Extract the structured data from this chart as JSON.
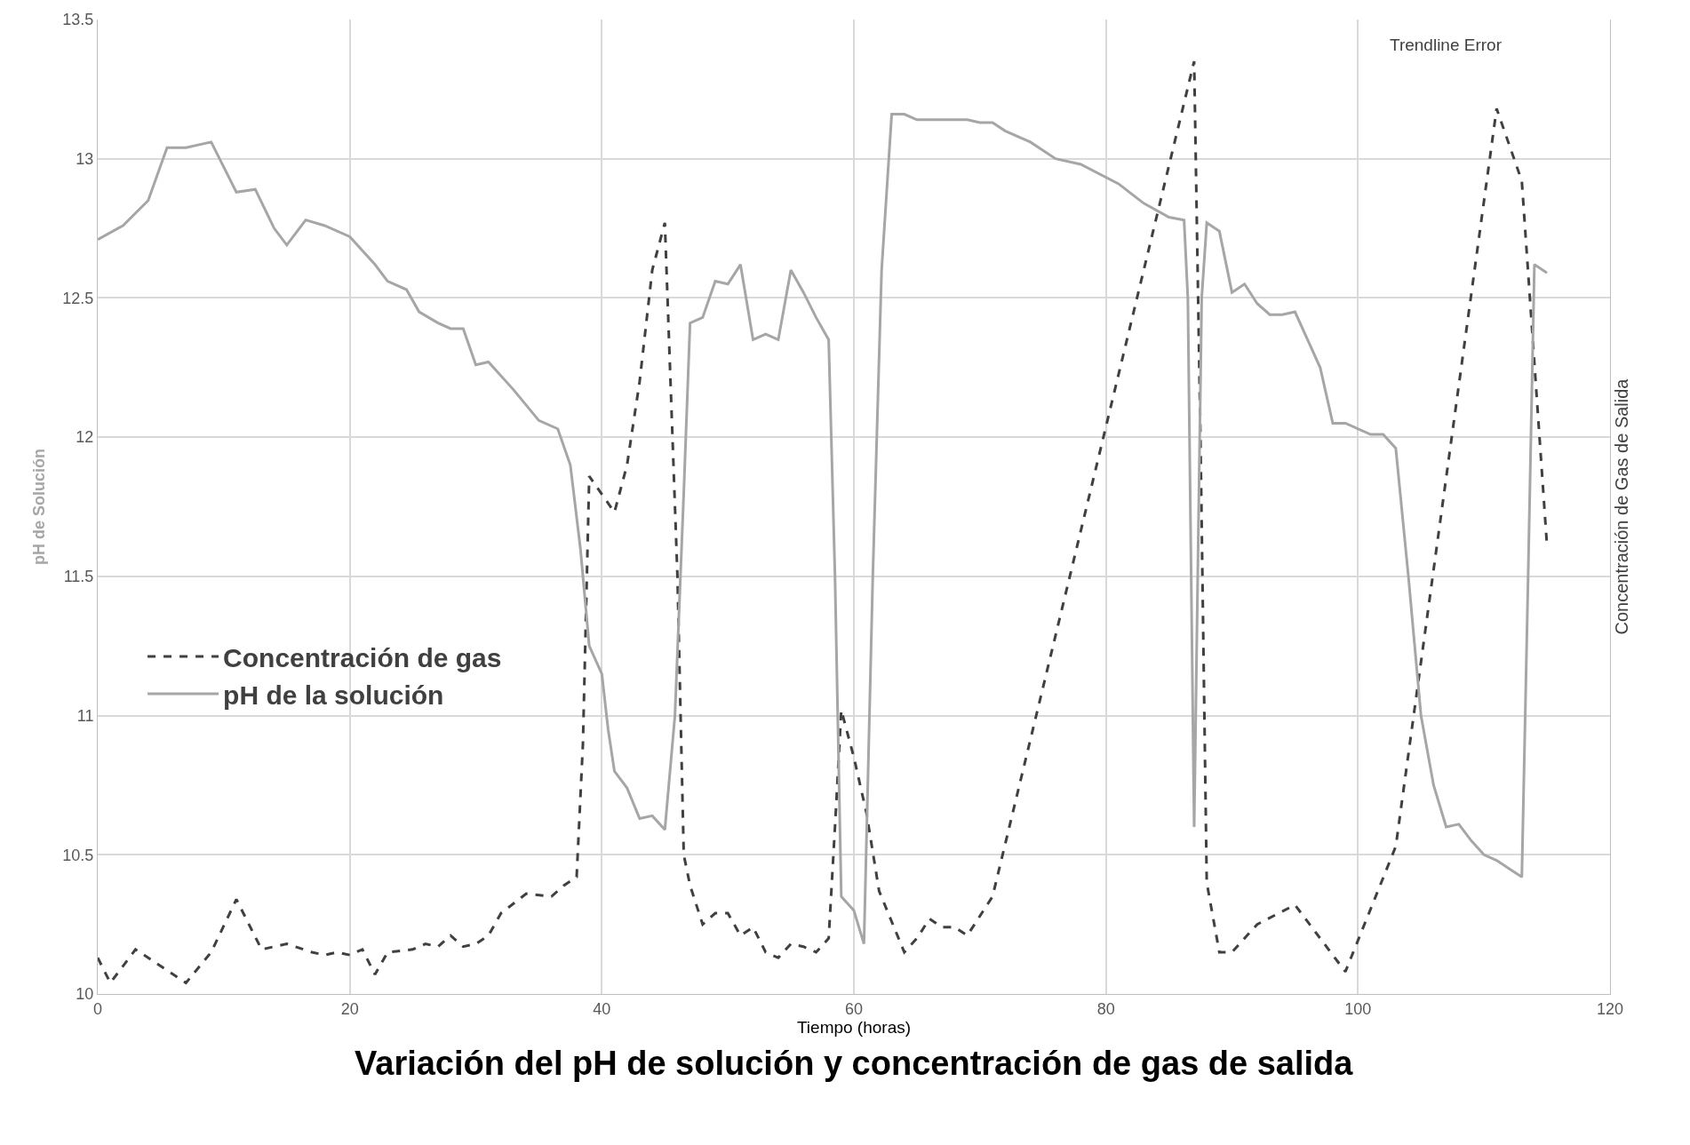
{
  "chart_data": {
    "type": "line",
    "title": "Variación del pH de solución y concentración de gas de salida",
    "xlabel": "Tiempo (horas)",
    "ylabel": "pH de Solución",
    "y2label": "Concentración de Gas de Salida",
    "annotations": [
      "Trendline Error"
    ],
    "xlim": [
      0,
      120
    ],
    "xticks": [
      0,
      20,
      40,
      60,
      80,
      100,
      120
    ],
    "ylim": [
      10,
      13.5
    ],
    "yticks": [
      10,
      10.5,
      11,
      11.5,
      12,
      12.5,
      13,
      13.5
    ],
    "grid": true,
    "legend": "left",
    "marker": "none",
    "series": [
      {
        "name": "Concentración de gas",
        "color": "#404040",
        "line_style": "dashed",
        "x": [
          0,
          1,
          3,
          7,
          9,
          11,
          13,
          15,
          17,
          18,
          19,
          20,
          21,
          22,
          23,
          25,
          26,
          27,
          28,
          29,
          30,
          31,
          32,
          34,
          36,
          37,
          38,
          38.5,
          39,
          41,
          42,
          43,
          44,
          45,
          46,
          46.5,
          47,
          48,
          49,
          50,
          51,
          52,
          53,
          54,
          55,
          56,
          57,
          58,
          58.5,
          59,
          60,
          61,
          62,
          64,
          65,
          66,
          67,
          68,
          69,
          71,
          87,
          87.5,
          88,
          89,
          90,
          92,
          95,
          99,
          103,
          111,
          113,
          115
        ],
        "values": [
          10.13,
          10.04,
          10.16,
          10.04,
          10.15,
          10.34,
          10.16,
          10.18,
          10.15,
          10.14,
          10.15,
          10.14,
          10.16,
          10.07,
          10.15,
          10.16,
          10.18,
          10.17,
          10.21,
          10.17,
          10.18,
          10.21,
          10.29,
          10.36,
          10.35,
          10.39,
          10.42,
          10.9,
          11.86,
          11.73,
          11.9,
          12.2,
          12.6,
          12.77,
          11.5,
          10.5,
          10.39,
          10.25,
          10.29,
          10.29,
          10.21,
          10.24,
          10.15,
          10.13,
          10.18,
          10.17,
          10.15,
          10.2,
          10.6,
          11.02,
          10.85,
          10.65,
          10.37,
          10.15,
          10.2,
          10.27,
          10.24,
          10.24,
          10.21,
          10.35,
          13.35,
          12.0,
          10.4,
          10.15,
          10.15,
          10.25,
          10.32,
          10.08,
          10.53,
          13.18,
          12.92,
          11.61
        ]
      },
      {
        "name": "pH de la solución",
        "color": "#a6a6a6",
        "line_style": "solid",
        "x": [
          0,
          2,
          4,
          5.5,
          7,
          9,
          11,
          12.5,
          14,
          15,
          16.5,
          18,
          20,
          22,
          23,
          24.5,
          25.5,
          27,
          28,
          29,
          30,
          31,
          33,
          35,
          36.5,
          37.5,
          38.3,
          39,
          40,
          40.5,
          41,
          42,
          43,
          44,
          45,
          45.8,
          46.5,
          47,
          48,
          49,
          50,
          51,
          52,
          53,
          54,
          55,
          56,
          57,
          58,
          58.5,
          59,
          60,
          60.8,
          61.5,
          62.2,
          63,
          64,
          65,
          69,
          70,
          71,
          72,
          74,
          76,
          78,
          81,
          83,
          85,
          86.2,
          86.5,
          87,
          87.6,
          88,
          89,
          90,
          91,
          92,
          93,
          94,
          95,
          96,
          97,
          98,
          99,
          101,
          102,
          103,
          104,
          105,
          106,
          107,
          108,
          109,
          110,
          111,
          112,
          113,
          113.5,
          114,
          115
        ],
        "values": [
          12.71,
          12.76,
          12.85,
          13.04,
          13.04,
          13.06,
          12.88,
          12.89,
          12.75,
          12.69,
          12.78,
          12.76,
          12.72,
          12.62,
          12.56,
          12.53,
          12.45,
          12.41,
          12.39,
          12.39,
          12.26,
          12.27,
          12.17,
          12.06,
          12.03,
          11.9,
          11.6,
          11.25,
          11.15,
          10.95,
          10.8,
          10.74,
          10.63,
          10.64,
          10.59,
          11.0,
          11.8,
          12.41,
          12.43,
          12.56,
          12.55,
          12.62,
          12.35,
          12.37,
          12.35,
          12.6,
          12.52,
          12.43,
          12.35,
          11.5,
          10.35,
          10.3,
          10.18,
          11.5,
          12.6,
          13.16,
          13.16,
          13.14,
          13.14,
          13.13,
          13.13,
          13.1,
          13.06,
          13.0,
          12.98,
          12.91,
          12.84,
          12.79,
          12.78,
          12.5,
          10.6,
          12.5,
          12.77,
          12.74,
          12.52,
          12.55,
          12.48,
          12.44,
          12.44,
          12.45,
          12.35,
          12.25,
          12.05,
          12.05,
          12.01,
          12.01,
          11.96,
          11.5,
          11.0,
          10.75,
          10.6,
          10.61,
          10.55,
          10.5,
          10.48,
          10.45,
          10.42,
          11.5,
          12.62,
          12.59
        ]
      }
    ]
  }
}
